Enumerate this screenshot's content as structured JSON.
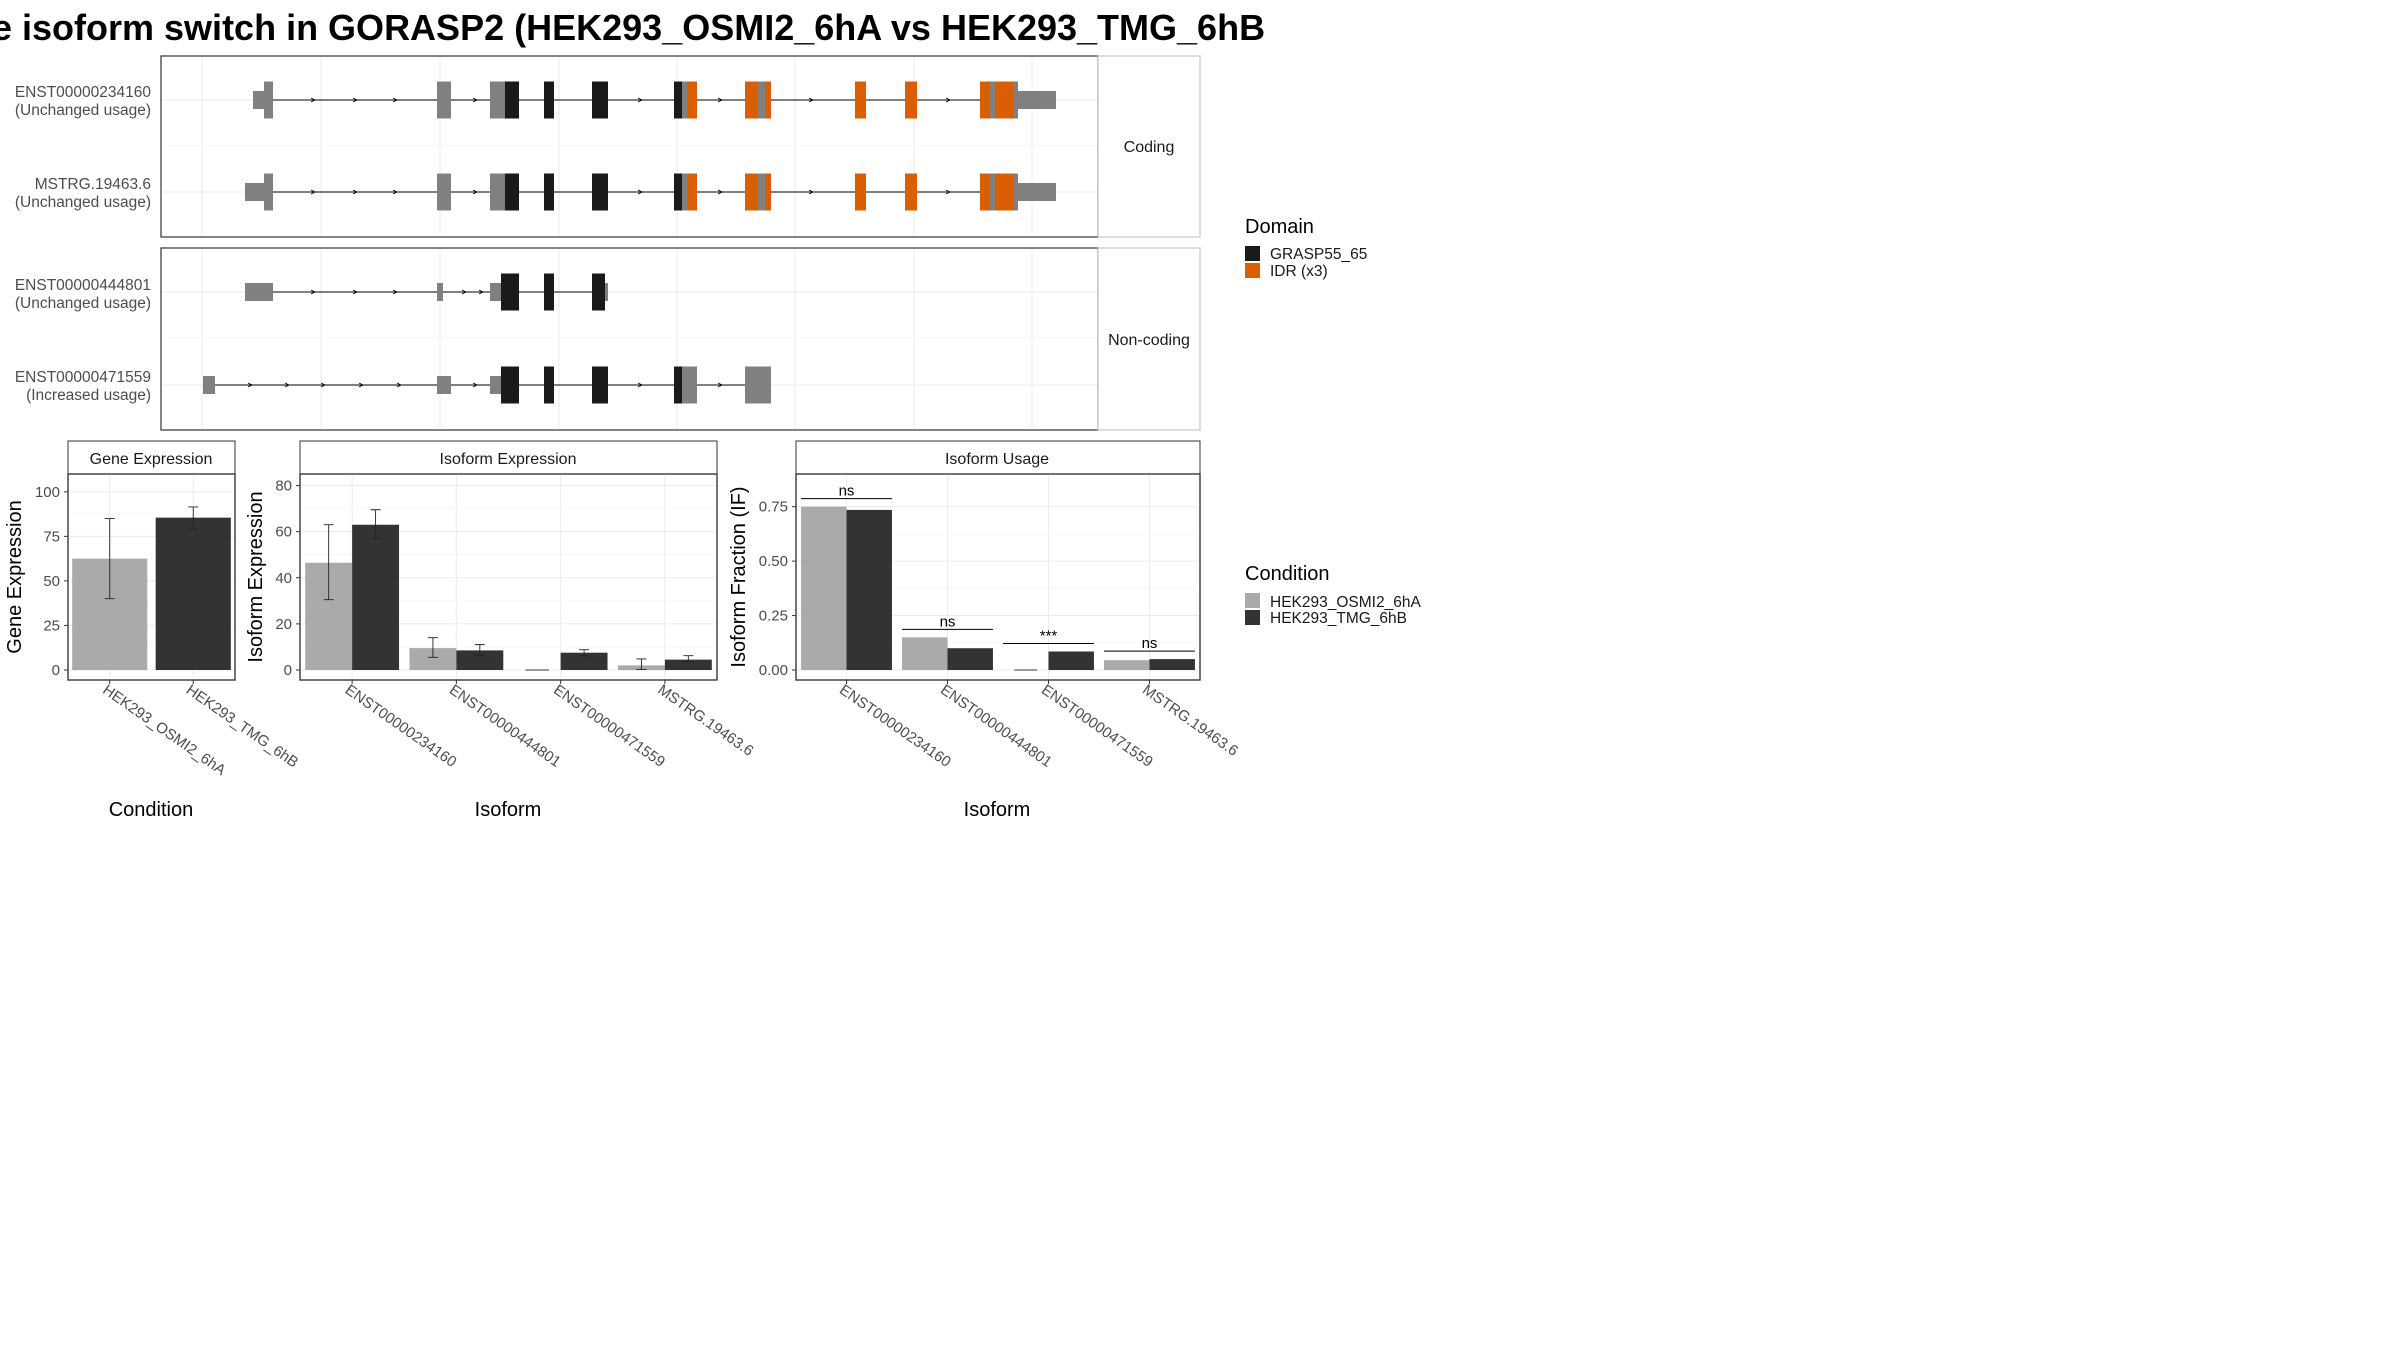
{
  "title": "e isoform switch in GORASP2 (HEK293_OSMI2_6hA vs HEK293_TMG_6hB",
  "colors": {
    "grey_exon": "#808080",
    "domain_black": "#1a1a1a",
    "idr_orange": "#d95f02",
    "cond_a": "#aaaaaa",
    "cond_b": "#333333"
  },
  "structure": {
    "panels": [
      {
        "label": "Coding",
        "transcripts": [
          {
            "id": "ENST00000234160",
            "usage": "(Unchanged usage)",
            "exons": [
              [
                1340,
                1355
              ],
              [
                1360,
                1370
              ],
              [
                2255,
                2272
              ],
              [
                2535,
                2555
              ],
              [
                2820,
                2837
              ],
              [
                3305,
                3320
              ],
              [
                3335,
                3340
              ],
              [
                3425,
                3435
              ],
              [
                3545,
                3555
              ],
              [
                3615,
                3620
              ],
              [
                4095,
                4105
              ],
              [
                4130,
                4140
              ],
              [
                4365,
                4375
              ],
              [
                4412,
                4445
              ]
            ],
            "utr": [
              [
                1340,
                1355
              ],
              [
                2255,
                2272
              ],
              [
                2535,
                2555
              ],
              [
                3305,
                3320
              ],
              [
                3615,
                3620
              ],
              [
                4095,
                4105
              ],
              [
                4130,
                4140
              ],
              [
                4365,
                4375
              ],
              [
                4412,
                4445
              ]
            ],
            "domains": [
              {
                "name": "GRASP55_65",
                "segs": [
                  [
                    2555,
                    2565
                  ],
                  [
                    2820,
                    2837
                  ],
                  [
                    3040,
                    3060
                  ],
                  [
                    3320,
                    3335
                  ]
                ]
              },
              {
                "name": "IDR",
                "segs": [
                  [
                    3335,
                    3345
                  ],
                  [
                    3425,
                    3435
                  ],
                  [
                    3545,
                    3555
                  ],
                  [
                    3620,
                    3625
                  ],
                  [
                    4375,
                    4385
                  ],
                  [
                    4400,
                    4412
                  ]
                ]
              }
            ]
          },
          {
            "id": "MSTRG.19463.6",
            "usage": "(Unchanged usage)",
            "exons": [
              [
                1300,
                1370
              ],
              [
                2255,
                2272
              ],
              [
                2535,
                2555
              ],
              [
                2820,
                2837
              ],
              [
                3305,
                3320
              ],
              [
                3425,
                3435
              ],
              [
                3545,
                3555
              ],
              [
                3615,
                3620
              ],
              [
                4095,
                4105
              ],
              [
                4130,
                4140
              ],
              [
                4365,
                4375
              ],
              [
                4412,
                4445
              ]
            ],
            "utr": [],
            "domains": []
          }
        ]
      },
      {
        "label": "Non-coding",
        "transcripts": [
          {
            "id": "ENST00000444801",
            "usage": "(Unchanged usage)",
            "exons": [],
            "utr": [],
            "domains": []
          },
          {
            "id": "ENST00000471559",
            "usage": "(Increased usage)",
            "exons": [],
            "utr": [],
            "domains": []
          }
        ]
      }
    ]
  },
  "domain_legend": {
    "title": "Domain",
    "items": [
      "GRASP55_65",
      "IDR (x3)"
    ]
  },
  "condition_legend": {
    "title": "Condition",
    "items": [
      "HEK293_OSMI2_6hA",
      "HEK293_TMG_6hB"
    ]
  },
  "chart_data": [
    {
      "type": "bar",
      "title": "Gene Expression",
      "xlabel": "Condition",
      "ylabel": "Gene Expression",
      "categories": [
        "HEK293_OSMI2_6hA",
        "HEK293_TMG_6hB"
      ],
      "values": [
        62.5,
        85.5
      ],
      "error": [
        [
          40,
          85
        ],
        [
          79,
          91.5
        ]
      ],
      "ylim": [
        0,
        110
      ],
      "yticks": [
        0,
        25,
        50,
        75,
        100
      ]
    },
    {
      "type": "bar",
      "title": "Isoform Expression",
      "xlabel": "Isoform",
      "ylabel": "Isoform Expression",
      "categories": [
        "ENST00000234160",
        "ENST00000444801",
        "ENST00000471559",
        "MSTRG.19463.6"
      ],
      "series": [
        {
          "name": "HEK293_OSMI2_6hA",
          "values": [
            46.5,
            9.5,
            0,
            2.0
          ],
          "error": [
            [
              30.5,
              63
            ],
            [
              5.5,
              14
            ],
            [
              0,
              0
            ],
            [
              0.2,
              4.8
            ]
          ]
        },
        {
          "name": "HEK293_TMG_6hB",
          "values": [
            63,
            8.5,
            7.5,
            4.5
          ],
          "error": [
            [
              57,
              69.5
            ],
            [
              6.5,
              11
            ],
            [
              6.2,
              8.8
            ],
            [
              3.5,
              6.2
            ]
          ]
        }
      ],
      "ylim": [
        0,
        85
      ],
      "yticks": [
        0,
        20,
        40,
        60,
        80
      ]
    },
    {
      "type": "bar",
      "title": "Isoform Usage",
      "xlabel": "Isoform",
      "ylabel": "Isoform Fraction (IF)",
      "categories": [
        "ENST00000234160",
        "ENST00000444801",
        "ENST00000471559",
        "MSTRG.19463.6"
      ],
      "series": [
        {
          "name": "HEK293_OSMI2_6hA",
          "values": [
            0.75,
            0.15,
            0.0,
            0.045
          ]
        },
        {
          "name": "HEK293_TMG_6hB",
          "values": [
            0.735,
            0.1,
            0.085,
            0.05
          ]
        }
      ],
      "significance": [
        "ns",
        "ns",
        "***",
        "ns"
      ],
      "ylim": [
        0,
        0.9
      ],
      "yticks": [
        0.0,
        0.25,
        0.5,
        0.75
      ],
      "ytick_labels": [
        "0.00",
        "0.25",
        "0.50",
        "0.75"
      ]
    }
  ]
}
